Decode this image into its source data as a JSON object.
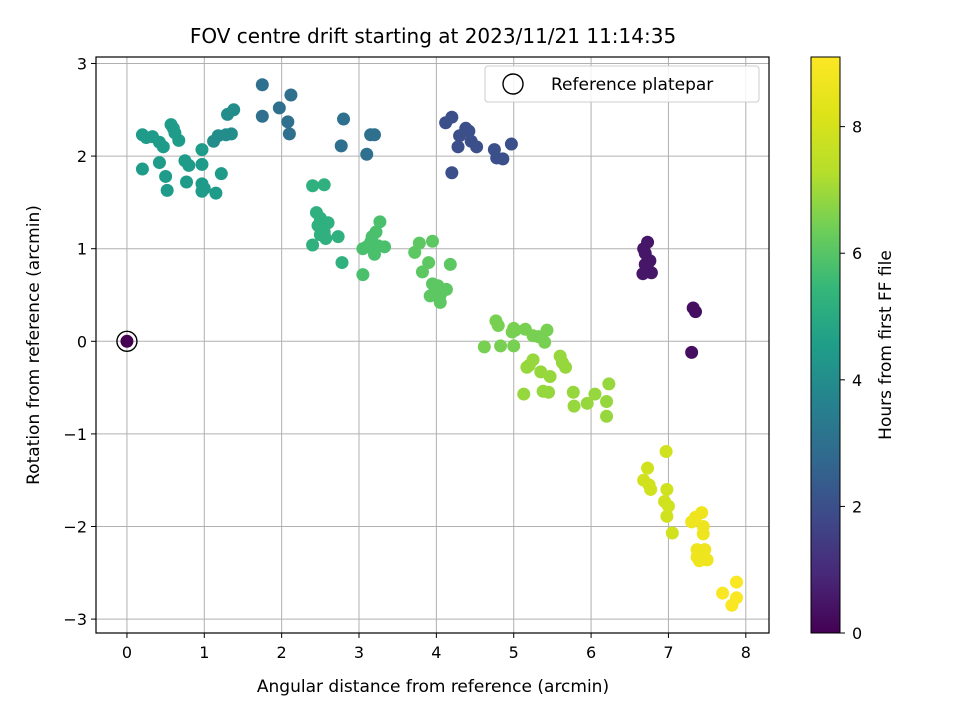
{
  "chart_data": {
    "type": "scatter",
    "title": "FOV centre drift starting at 2023/11/21 11:14:35",
    "xlabel": "Angular distance from reference (arcmin)",
    "ylabel": "Rotation from reference (arcmin)",
    "xlim": [
      -0.4,
      8.3
    ],
    "ylim": [
      -3.15,
      3.07
    ],
    "xticks": [
      0,
      1,
      2,
      3,
      4,
      5,
      6,
      7,
      8
    ],
    "yticks": [
      -3,
      -2,
      -1,
      0,
      1,
      2,
      3
    ],
    "xtick_labels": [
      "0",
      "1",
      "2",
      "3",
      "4",
      "5",
      "6",
      "7",
      "8"
    ],
    "ytick_labels": [
      "−3",
      "−2",
      "−1",
      "0",
      "1",
      "2",
      "3"
    ],
    "grid": true,
    "colormap": "viridis",
    "colorbar": {
      "label": "Hours from first FF file",
      "range": [
        0,
        9.1
      ],
      "ticks": [
        0,
        2,
        4,
        6,
        8
      ],
      "tick_labels": [
        "0",
        "2",
        "4",
        "6",
        "8"
      ]
    },
    "legend": {
      "entries": [
        "Reference platepar"
      ],
      "position": "upper-right"
    },
    "reference_point": {
      "x": 0,
      "y": 0,
      "label": "Reference platepar"
    },
    "points": [
      {
        "x": 0.0,
        "y": 0.0,
        "h": 0.0
      },
      {
        "x": 6.68,
        "y": 1.0,
        "h": 0.5
      },
      {
        "x": 6.73,
        "y": 1.07,
        "h": 0.5
      },
      {
        "x": 6.7,
        "y": 0.95,
        "h": 0.5
      },
      {
        "x": 6.76,
        "y": 0.87,
        "h": 0.5
      },
      {
        "x": 6.7,
        "y": 0.83,
        "h": 0.5
      },
      {
        "x": 6.73,
        "y": 0.78,
        "h": 0.5
      },
      {
        "x": 6.67,
        "y": 0.73,
        "h": 0.5
      },
      {
        "x": 6.78,
        "y": 0.74,
        "h": 0.5
      },
      {
        "x": 7.32,
        "y": 0.36,
        "h": 0.3
      },
      {
        "x": 7.35,
        "y": 0.32,
        "h": 0.3
      },
      {
        "x": 7.3,
        "y": -0.12,
        "h": 0.3
      },
      {
        "x": 4.12,
        "y": 2.36,
        "h": 2.0
      },
      {
        "x": 4.2,
        "y": 2.42,
        "h": 2.0
      },
      {
        "x": 4.38,
        "y": 2.3,
        "h": 2.0
      },
      {
        "x": 4.42,
        "y": 2.27,
        "h": 2.0
      },
      {
        "x": 4.3,
        "y": 2.22,
        "h": 2.0
      },
      {
        "x": 4.28,
        "y": 2.1,
        "h": 2.0
      },
      {
        "x": 4.45,
        "y": 2.16,
        "h": 2.0
      },
      {
        "x": 4.52,
        "y": 2.1,
        "h": 2.0
      },
      {
        "x": 4.75,
        "y": 2.07,
        "h": 2.0
      },
      {
        "x": 4.78,
        "y": 1.98,
        "h": 2.0
      },
      {
        "x": 4.86,
        "y": 1.97,
        "h": 2.0
      },
      {
        "x": 4.97,
        "y": 2.13,
        "h": 2.0
      },
      {
        "x": 4.2,
        "y": 1.82,
        "h": 2.0
      },
      {
        "x": 1.75,
        "y": 2.77,
        "h": 3.0
      },
      {
        "x": 2.12,
        "y": 2.66,
        "h": 3.0
      },
      {
        "x": 1.97,
        "y": 2.52,
        "h": 3.0
      },
      {
        "x": 1.75,
        "y": 2.43,
        "h": 3.0
      },
      {
        "x": 2.08,
        "y": 2.37,
        "h": 3.0
      },
      {
        "x": 2.1,
        "y": 2.24,
        "h": 3.0
      },
      {
        "x": 2.8,
        "y": 2.4,
        "h": 3.0
      },
      {
        "x": 3.15,
        "y": 2.23,
        "h": 3.0
      },
      {
        "x": 3.2,
        "y": 2.23,
        "h": 3.0
      },
      {
        "x": 2.77,
        "y": 2.11,
        "h": 3.0
      },
      {
        "x": 3.1,
        "y": 2.02,
        "h": 3.0
      },
      {
        "x": 1.3,
        "y": 2.45,
        "h": 4.0
      },
      {
        "x": 1.38,
        "y": 2.5,
        "h": 4.0
      },
      {
        "x": 1.28,
        "y": 2.23,
        "h": 4.0
      },
      {
        "x": 1.35,
        "y": 2.24,
        "h": 4.0
      },
      {
        "x": 1.18,
        "y": 2.22,
        "h": 4.0
      },
      {
        "x": 1.12,
        "y": 2.16,
        "h": 4.0
      },
      {
        "x": 0.2,
        "y": 2.23,
        "h": 4.5
      },
      {
        "x": 0.25,
        "y": 2.2,
        "h": 4.5
      },
      {
        "x": 0.33,
        "y": 2.21,
        "h": 4.5
      },
      {
        "x": 0.42,
        "y": 2.15,
        "h": 4.5
      },
      {
        "x": 0.47,
        "y": 2.1,
        "h": 4.5
      },
      {
        "x": 0.57,
        "y": 2.34,
        "h": 4.5
      },
      {
        "x": 0.6,
        "y": 2.3,
        "h": 4.5
      },
      {
        "x": 0.62,
        "y": 2.25,
        "h": 4.5
      },
      {
        "x": 0.67,
        "y": 2.17,
        "h": 4.5
      },
      {
        "x": 0.42,
        "y": 1.93,
        "h": 4.5
      },
      {
        "x": 0.2,
        "y": 1.86,
        "h": 4.5
      },
      {
        "x": 0.5,
        "y": 1.78,
        "h": 4.5
      },
      {
        "x": 0.52,
        "y": 1.63,
        "h": 4.5
      },
      {
        "x": 0.75,
        "y": 1.95,
        "h": 4.5
      },
      {
        "x": 0.8,
        "y": 1.9,
        "h": 4.5
      },
      {
        "x": 0.97,
        "y": 2.07,
        "h": 4.5
      },
      {
        "x": 0.97,
        "y": 1.91,
        "h": 4.5
      },
      {
        "x": 1.22,
        "y": 1.81,
        "h": 4.5
      },
      {
        "x": 0.77,
        "y": 1.72,
        "h": 4.5
      },
      {
        "x": 0.97,
        "y": 1.7,
        "h": 4.5
      },
      {
        "x": 1.0,
        "y": 1.65,
        "h": 4.5
      },
      {
        "x": 0.97,
        "y": 1.62,
        "h": 4.5
      },
      {
        "x": 1.15,
        "y": 1.6,
        "h": 4.5
      },
      {
        "x": 2.4,
        "y": 1.68,
        "h": 5.2
      },
      {
        "x": 2.55,
        "y": 1.69,
        "h": 5.2
      },
      {
        "x": 2.45,
        "y": 1.39,
        "h": 5.2
      },
      {
        "x": 2.5,
        "y": 1.33,
        "h": 5.2
      },
      {
        "x": 2.47,
        "y": 1.25,
        "h": 5.2
      },
      {
        "x": 2.6,
        "y": 1.28,
        "h": 5.2
      },
      {
        "x": 2.55,
        "y": 1.18,
        "h": 5.2
      },
      {
        "x": 2.5,
        "y": 1.15,
        "h": 5.2
      },
      {
        "x": 2.57,
        "y": 1.11,
        "h": 5.2
      },
      {
        "x": 2.73,
        "y": 1.13,
        "h": 5.2
      },
      {
        "x": 2.4,
        "y": 1.04,
        "h": 5.2
      },
      {
        "x": 2.78,
        "y": 0.85,
        "h": 5.2
      },
      {
        "x": 3.27,
        "y": 1.29,
        "h": 5.8
      },
      {
        "x": 3.22,
        "y": 1.18,
        "h": 5.8
      },
      {
        "x": 3.17,
        "y": 1.13,
        "h": 5.8
      },
      {
        "x": 3.15,
        "y": 1.07,
        "h": 5.8
      },
      {
        "x": 3.1,
        "y": 1.02,
        "h": 5.8
      },
      {
        "x": 3.25,
        "y": 1.03,
        "h": 5.8
      },
      {
        "x": 3.33,
        "y": 1.02,
        "h": 5.8
      },
      {
        "x": 3.05,
        "y": 1.0,
        "h": 5.8
      },
      {
        "x": 3.2,
        "y": 0.94,
        "h": 5.8
      },
      {
        "x": 3.05,
        "y": 0.72,
        "h": 5.8
      },
      {
        "x": 3.78,
        "y": 1.06,
        "h": 6.1
      },
      {
        "x": 3.95,
        "y": 1.08,
        "h": 6.1
      },
      {
        "x": 3.72,
        "y": 0.96,
        "h": 6.1
      },
      {
        "x": 3.9,
        "y": 0.85,
        "h": 6.1
      },
      {
        "x": 3.82,
        "y": 0.75,
        "h": 6.1
      },
      {
        "x": 4.18,
        "y": 0.83,
        "h": 6.1
      },
      {
        "x": 3.95,
        "y": 0.62,
        "h": 6.1
      },
      {
        "x": 4.02,
        "y": 0.6,
        "h": 6.1
      },
      {
        "x": 4.05,
        "y": 0.55,
        "h": 6.1
      },
      {
        "x": 4.13,
        "y": 0.56,
        "h": 6.1
      },
      {
        "x": 3.92,
        "y": 0.49,
        "h": 6.1
      },
      {
        "x": 4.05,
        "y": 0.5,
        "h": 6.1
      },
      {
        "x": 4.05,
        "y": 0.42,
        "h": 6.1
      },
      {
        "x": 4.77,
        "y": 0.22,
        "h": 6.5
      },
      {
        "x": 4.8,
        "y": 0.17,
        "h": 6.5
      },
      {
        "x": 5.0,
        "y": 0.14,
        "h": 6.5
      },
      {
        "x": 4.98,
        "y": 0.1,
        "h": 6.5
      },
      {
        "x": 5.02,
        "y": 0.12,
        "h": 6.5
      },
      {
        "x": 5.15,
        "y": 0.13,
        "h": 6.5
      },
      {
        "x": 5.25,
        "y": 0.06,
        "h": 6.5
      },
      {
        "x": 5.32,
        "y": 0.05,
        "h": 6.5
      },
      {
        "x": 5.43,
        "y": 0.12,
        "h": 6.5
      },
      {
        "x": 5.4,
        "y": -0.01,
        "h": 6.5
      },
      {
        "x": 4.62,
        "y": -0.06,
        "h": 6.5
      },
      {
        "x": 4.83,
        "y": -0.05,
        "h": 6.5
      },
      {
        "x": 5.0,
        "y": -0.05,
        "h": 6.5
      },
      {
        "x": 5.25,
        "y": -0.2,
        "h": 6.9
      },
      {
        "x": 5.2,
        "y": -0.26,
        "h": 6.9
      },
      {
        "x": 5.17,
        "y": -0.28,
        "h": 6.9
      },
      {
        "x": 5.35,
        "y": -0.33,
        "h": 6.9
      },
      {
        "x": 5.47,
        "y": -0.38,
        "h": 6.9
      },
      {
        "x": 5.6,
        "y": -0.16,
        "h": 6.9
      },
      {
        "x": 5.63,
        "y": -0.23,
        "h": 6.9
      },
      {
        "x": 5.67,
        "y": -0.28,
        "h": 6.9
      },
      {
        "x": 5.38,
        "y": -0.54,
        "h": 6.9
      },
      {
        "x": 5.45,
        "y": -0.55,
        "h": 6.9
      },
      {
        "x": 5.13,
        "y": -0.57,
        "h": 6.9
      },
      {
        "x": 5.77,
        "y": -0.55,
        "h": 6.9
      },
      {
        "x": 5.78,
        "y": -0.7,
        "h": 6.9
      },
      {
        "x": 5.95,
        "y": -0.67,
        "h": 6.9
      },
      {
        "x": 6.05,
        "y": -0.57,
        "h": 6.9
      },
      {
        "x": 6.23,
        "y": -0.46,
        "h": 6.9
      },
      {
        "x": 6.2,
        "y": -0.65,
        "h": 6.9
      },
      {
        "x": 6.2,
        "y": -0.81,
        "h": 6.9
      },
      {
        "x": 6.73,
        "y": -1.37,
        "h": 7.9
      },
      {
        "x": 6.68,
        "y": -1.5,
        "h": 7.9
      },
      {
        "x": 6.75,
        "y": -1.55,
        "h": 7.9
      },
      {
        "x": 6.77,
        "y": -1.6,
        "h": 7.9
      },
      {
        "x": 6.97,
        "y": -1.19,
        "h": 7.9
      },
      {
        "x": 6.98,
        "y": -1.6,
        "h": 7.9
      },
      {
        "x": 6.95,
        "y": -1.73,
        "h": 7.9
      },
      {
        "x": 7.0,
        "y": -1.78,
        "h": 7.9
      },
      {
        "x": 6.98,
        "y": -1.89,
        "h": 7.9
      },
      {
        "x": 7.05,
        "y": -2.07,
        "h": 7.9
      },
      {
        "x": 7.3,
        "y": -1.95,
        "h": 8.7
      },
      {
        "x": 7.35,
        "y": -1.9,
        "h": 8.7
      },
      {
        "x": 7.43,
        "y": -1.85,
        "h": 8.7
      },
      {
        "x": 7.45,
        "y": -2.0,
        "h": 8.7
      },
      {
        "x": 7.45,
        "y": -2.08,
        "h": 8.7
      },
      {
        "x": 7.37,
        "y": -2.25,
        "h": 8.7
      },
      {
        "x": 7.47,
        "y": -2.25,
        "h": 8.7
      },
      {
        "x": 7.37,
        "y": -2.33,
        "h": 8.7
      },
      {
        "x": 7.4,
        "y": -2.37,
        "h": 8.7
      },
      {
        "x": 7.5,
        "y": -2.36,
        "h": 8.7
      },
      {
        "x": 7.7,
        "y": -2.72,
        "h": 9.0
      },
      {
        "x": 7.82,
        "y": -2.85,
        "h": 9.0
      },
      {
        "x": 7.88,
        "y": -2.77,
        "h": 9.0
      },
      {
        "x": 7.88,
        "y": -2.6,
        "h": 9.0
      }
    ]
  }
}
